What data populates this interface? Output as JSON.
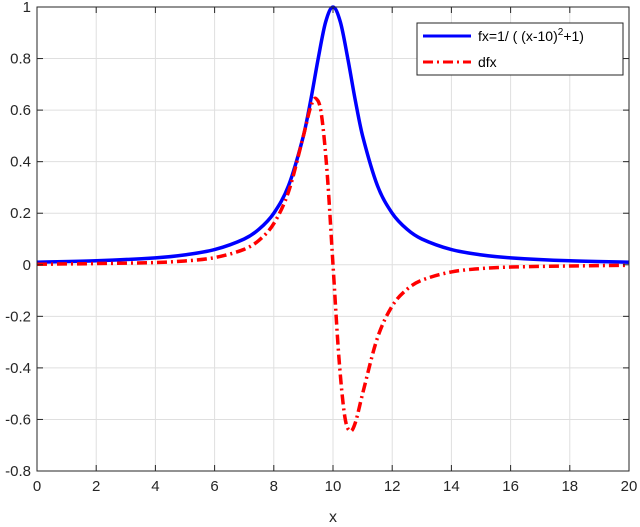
{
  "chart_data": {
    "type": "line",
    "xlabel": "x",
    "ylabel": "",
    "xlim": [
      0,
      20
    ],
    "ylim": [
      -0.8,
      1
    ],
    "xticks": [
      0,
      2,
      4,
      6,
      8,
      10,
      12,
      14,
      16,
      18,
      20
    ],
    "yticks": [
      -0.8,
      -0.6,
      -0.4,
      -0.2,
      0,
      0.2,
      0.4,
      0.6,
      0.8,
      1
    ],
    "xtick_labels": [
      "0",
      "2",
      "4",
      "6",
      "8",
      "10",
      "12",
      "14",
      "16",
      "18",
      "20"
    ],
    "ytick_labels": [
      "-0.8",
      "-0.6",
      "-0.4",
      "-0.2",
      "0",
      "0.2",
      "0.4",
      "0.6",
      "0.8",
      "1"
    ],
    "grid": true,
    "legend_position": "top-right",
    "series": [
      {
        "name": "fx=1/ ( (x-10)^2+1)",
        "legend_main": "fx=1/ ( (x-10)",
        "legend_sup": "2",
        "legend_tail": "+1)",
        "color": "#0000ff",
        "style": "solid",
        "x": [
          0,
          2,
          4,
          5,
          6,
          7,
          7.5,
          8,
          8.5,
          9,
          9.25,
          9.5,
          9.75,
          10,
          10.25,
          10.5,
          10.75,
          11,
          11.5,
          12,
          12.5,
          13,
          14,
          15,
          16,
          18,
          20
        ],
        "values": [
          0.0099,
          0.0154,
          0.027,
          0.0385,
          0.0588,
          0.1,
          0.1379,
          0.2,
          0.3077,
          0.5,
          0.64,
          0.8,
          0.9412,
          1.0,
          0.9412,
          0.8,
          0.64,
          0.5,
          0.3077,
          0.2,
          0.1379,
          0.1,
          0.0588,
          0.0385,
          0.027,
          0.0154,
          0.0099
        ]
      },
      {
        "name": "dfx",
        "legend_main": "dfx",
        "color": "#ff0000",
        "style": "dashdot",
        "x": [
          0,
          2,
          4,
          5,
          6,
          7,
          7.5,
          8,
          8.5,
          9,
          9.25,
          9.42,
          9.6,
          9.8,
          10,
          10.2,
          10.4,
          10.58,
          10.75,
          11,
          11.5,
          12,
          12.5,
          13,
          14,
          15,
          16,
          18,
          20
        ],
        "values": [
          0.002,
          0.0047,
          0.0088,
          0.0148,
          0.0277,
          0.06,
          0.095,
          0.16,
          0.284,
          0.5,
          0.614,
          0.645,
          0.59,
          0.36,
          0.0,
          -0.36,
          -0.59,
          -0.645,
          -0.614,
          -0.5,
          -0.284,
          -0.16,
          -0.095,
          -0.06,
          -0.0277,
          -0.0148,
          -0.0088,
          -0.0047,
          -0.002
        ]
      }
    ]
  }
}
